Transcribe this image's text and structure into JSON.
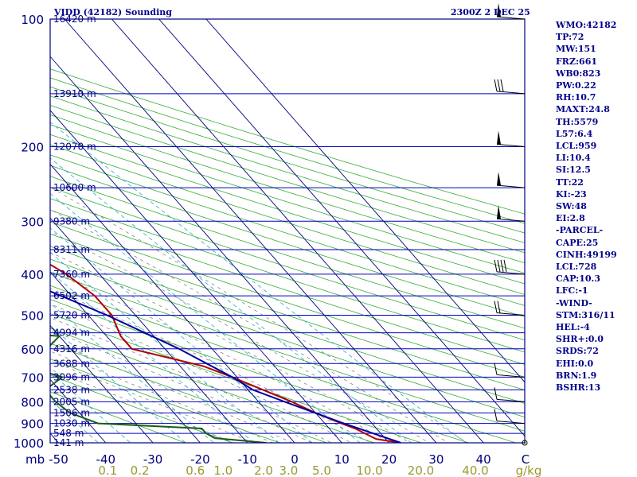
{
  "header": {
    "title": "VIDD (42182) Sounding",
    "time": "2300Z  2 DEC 25"
  },
  "stats": [
    "WMO:42182",
    "TP:72",
    "MW:151",
    "FRZ:661",
    "WB0:823",
    "PW:0.22",
    "RH:10.7",
    "MAXT:24.8",
    "TH:5579",
    "L57:6.4",
    "LCL:959",
    "LI:10.4",
    "SI:12.5",
    "TT:22",
    "KI:-23",
    "SW:48",
    "EI:2.8",
    "-PARCEL-",
    "CAPE:25",
    "CINH:49199",
    "LCL:728",
    "CAP:10.3",
    "LFC:-1",
    "-WIND-",
    "STM:316/11",
    "HEL:-4",
    "SHR+:0.0",
    "SRDS:72",
    "EHI:0.0",
    "BRN:1.9",
    "BSHR:13"
  ],
  "chart_data": {
    "type": "line",
    "diagram": "skew-T log-p",
    "xlabel_unit": "mb",
    "mixing_ratio_unit": "g/kg",
    "pressure_ticks": [
      100,
      200,
      300,
      400,
      500,
      600,
      700,
      800,
      900,
      1000
    ],
    "temperature_ticks": [
      -50,
      -40,
      -30,
      -20,
      -10,
      0,
      10,
      20,
      30,
      40
    ],
    "temperature_tick_labels": [
      "-50",
      "-40",
      "-30",
      "-20",
      "-10",
      "0",
      "10",
      "20",
      "30",
      "40"
    ],
    "mixing_ratio_ticks": [
      0.1,
      0.2,
      0.6,
      1.0,
      2.0,
      3.0,
      5.0,
      10.0,
      20.0,
      40.0
    ],
    "mixing_ratio_labels": [
      "0.1",
      "0.2",
      "0.6",
      "1.0",
      "2.0",
      "3.0",
      "5.0",
      "10.0",
      "20.0",
      "40.0"
    ],
    "height_levels": [
      {
        "p": 100,
        "label": "16420 m"
      },
      {
        "p": 150,
        "label": "13910 m"
      },
      {
        "p": 200,
        "label": "12070 m"
      },
      {
        "p": 250,
        "label": "10600 m"
      },
      {
        "p": 300,
        "label": "9380 m"
      },
      {
        "p": 350,
        "label": "8311 m"
      },
      {
        "p": 400,
        "label": "7360 m"
      },
      {
        "p": 450,
        "label": "6502 m"
      },
      {
        "p": 500,
        "label": "5720 m"
      },
      {
        "p": 550,
        "label": "4994 m"
      },
      {
        "p": 600,
        "label": "4316 m"
      },
      {
        "p": 650,
        "label": "3688 m"
      },
      {
        "p": 700,
        "label": "3096 m"
      },
      {
        "p": 750,
        "label": "2538 m"
      },
      {
        "p": 800,
        "label": "2005 m"
      },
      {
        "p": 850,
        "label": "1506 m"
      },
      {
        "p": 900,
        "label": "1030 m"
      },
      {
        "p": 950,
        "label": "548 m"
      },
      {
        "p": 1000,
        "label": "141 m"
      }
    ],
    "series": [
      {
        "key": "temperature",
        "color": "#b00000",
        "points": [
          [
            1000,
            22.5
          ],
          [
            980,
            18
          ],
          [
            970,
            17.5
          ],
          [
            925,
            15.5
          ],
          [
            900,
            13.5
          ],
          [
            850,
            10
          ],
          [
            800,
            7
          ],
          [
            700,
            -1
          ],
          [
            660,
            -5
          ],
          [
            600,
            -17
          ],
          [
            560,
            -17
          ],
          [
            500,
            -15
          ],
          [
            450,
            -15
          ],
          [
            400,
            -17
          ],
          [
            300,
            -26
          ],
          [
            250,
            -20
          ],
          [
            200,
            -11
          ],
          [
            150,
            -8
          ],
          [
            120,
            -4
          ],
          [
            110,
            0
          ],
          [
            100,
            0
          ]
        ]
      },
      {
        "key": "dewpoint",
        "color": "#1a5c1a",
        "points": [
          [
            1000,
            -6
          ],
          [
            975,
            -16
          ],
          [
            950,
            -17
          ],
          [
            925,
            -17
          ],
          [
            900,
            -38
          ],
          [
            850,
            -42
          ],
          [
            800,
            -43
          ],
          [
            750,
            -43
          ],
          [
            700,
            -37
          ],
          [
            650,
            -44
          ],
          [
            600,
            -35
          ],
          [
            560,
            -30
          ],
          [
            530,
            -57
          ],
          [
            490,
            -41
          ],
          [
            450,
            -32
          ],
          [
            420,
            -38
          ],
          [
            350,
            -38
          ],
          [
            300,
            -38
          ],
          [
            280,
            -38
          ],
          [
            250,
            -34
          ],
          [
            200,
            -33
          ],
          [
            150,
            -28
          ],
          [
            100,
            -18
          ]
        ]
      },
      {
        "key": "parcel",
        "color": "#0000a0",
        "points": [
          [
            1000,
            22.5
          ],
          [
            900,
            14
          ],
          [
            800,
            5.5
          ],
          [
            750,
            1
          ],
          [
            700,
            -1
          ],
          [
            600,
            -7
          ],
          [
            500,
            -16
          ],
          [
            400,
            -29
          ],
          [
            300,
            -47
          ],
          [
            250,
            -59
          ],
          [
            200,
            -71
          ],
          [
            150,
            -86
          ],
          [
            110,
            -102
          ]
        ]
      }
    ],
    "wind_barbs": [
      {
        "p": 100,
        "type": "flag"
      },
      {
        "p": 150,
        "type": "barbs3"
      },
      {
        "p": 200,
        "type": "flag"
      },
      {
        "p": 250,
        "type": "flag"
      },
      {
        "p": 300,
        "type": "flag"
      },
      {
        "p": 400,
        "type": "barbs4"
      },
      {
        "p": 500,
        "type": "barbs2"
      },
      {
        "p": 700,
        "type": "barb1"
      },
      {
        "p": 800,
        "type": "barb1"
      },
      {
        "p": 900,
        "type": "barb1"
      },
      {
        "p": 1000,
        "type": "calm"
      }
    ]
  }
}
